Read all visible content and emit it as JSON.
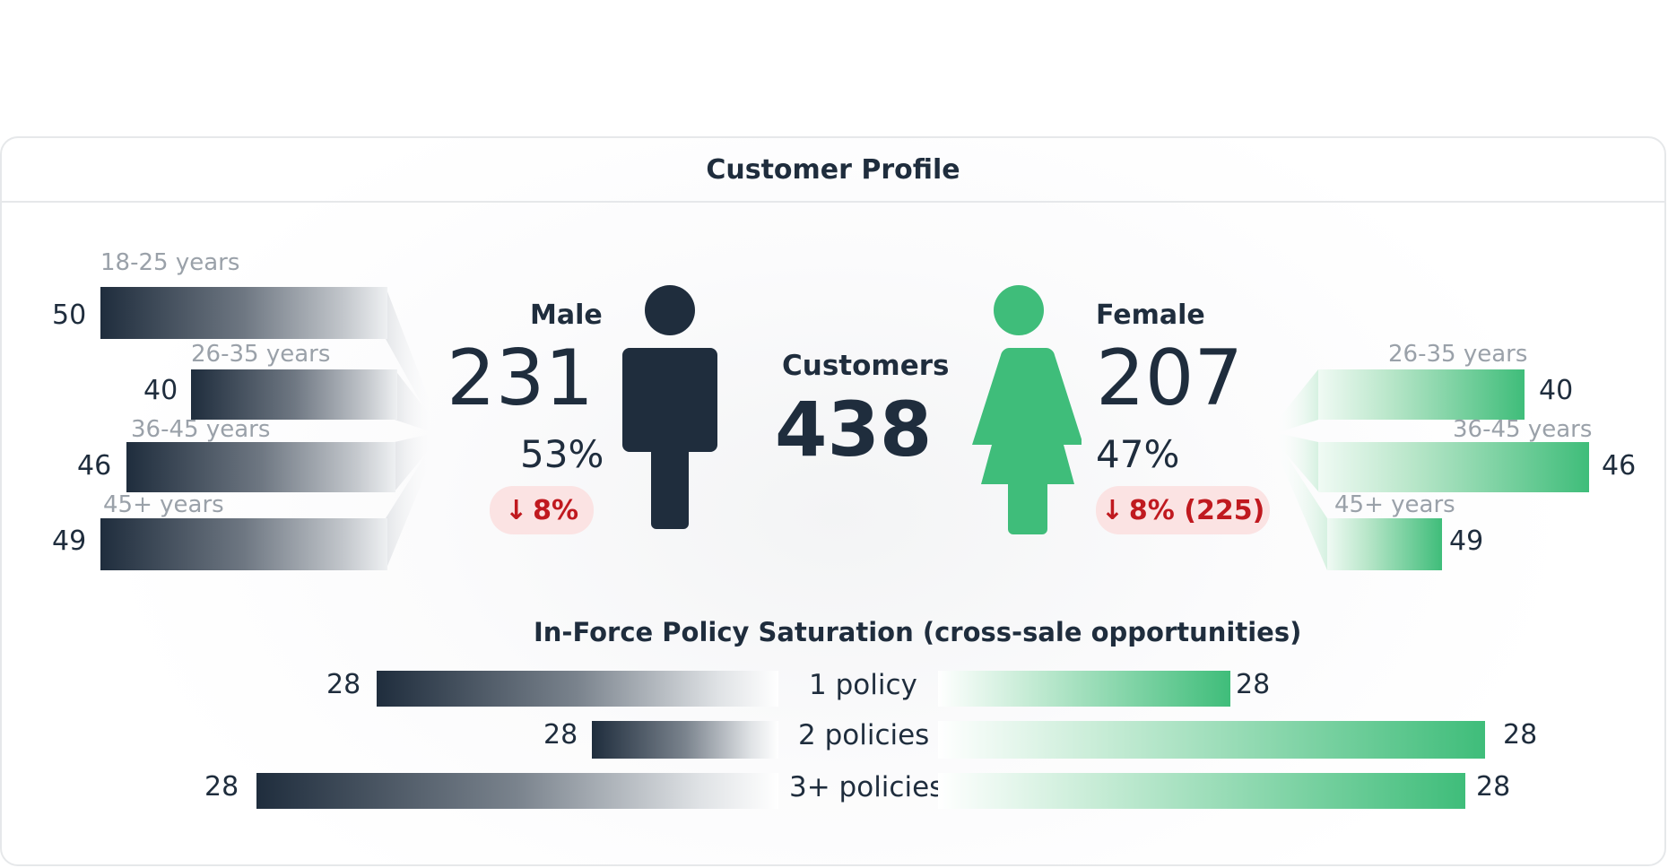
{
  "card": {
    "title": "Customer Profile"
  },
  "male": {
    "label": "Male",
    "count": "231",
    "percent": "53%",
    "change": "8%",
    "age_groups": [
      {
        "label": "18-25 years",
        "value": 50
      },
      {
        "label": "26-35 years",
        "value": 40
      },
      {
        "label": "36-45 years",
        "value": 46
      },
      {
        "label": "45+ years",
        "value": 49
      }
    ]
  },
  "female": {
    "label": "Female",
    "count": "207",
    "percent": "47%",
    "change": "8% (225)",
    "age_groups": [
      {
        "label": "26-35 years",
        "value": 40
      },
      {
        "label": "36-45 years",
        "value": 46
      },
      {
        "label": "45+ years",
        "value": 49
      }
    ]
  },
  "customers": {
    "label": "Customers",
    "total": "438"
  },
  "policies": {
    "title": "In-Force Policy Saturation (cross-sale opportunities)",
    "rows": [
      {
        "label": "1 policy",
        "male": 28,
        "female": 28
      },
      {
        "label": "2 policies",
        "male": 28,
        "female": 28
      },
      {
        "label": "3+ policies",
        "male": 28,
        "female": 28
      }
    ]
  },
  "colors": {
    "dark": "#1f2d3d",
    "green": "#3fbd7a",
    "negative": "#c0191f",
    "negative_bg": "#fbe3e3"
  },
  "icons": {
    "male_figure": "male-person-icon",
    "female_figure": "female-person-icon",
    "down_arrow": "arrow-down-icon"
  }
}
